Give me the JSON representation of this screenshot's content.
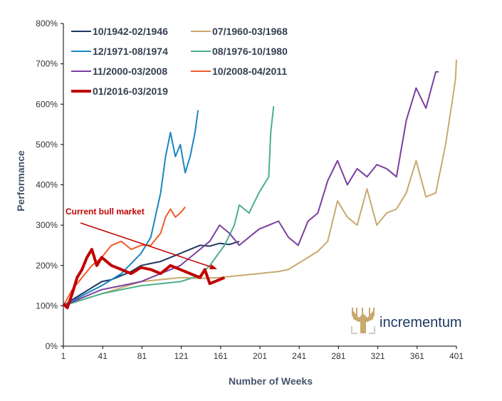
{
  "chart_data": {
    "type": "line",
    "title": "",
    "xlabel": "Number of Weeks",
    "ylabel": "Performance",
    "xlim": [
      1,
      401
    ],
    "ylim": [
      0,
      800
    ],
    "x_ticks": [
      1,
      41,
      81,
      121,
      161,
      201,
      241,
      281,
      321,
      361,
      401
    ],
    "y_ticks": [
      0,
      100,
      200,
      300,
      400,
      500,
      600,
      700,
      800
    ],
    "y_tick_format": "%",
    "grid": false,
    "legend_placement": "top-left",
    "annotation": {
      "text": "Current bull market",
      "color": "#c00000"
    },
    "logo_text": "incrementum",
    "series": [
      {
        "name": "10/1942-02/1946",
        "color": "#1f3864",
        "width": 2,
        "points": [
          [
            1,
            100
          ],
          [
            10,
            115
          ],
          [
            20,
            130
          ],
          [
            30,
            145
          ],
          [
            40,
            160
          ],
          [
            50,
            165
          ],
          [
            60,
            175
          ],
          [
            70,
            185
          ],
          [
            80,
            200
          ],
          [
            90,
            205
          ],
          [
            100,
            210
          ],
          [
            110,
            220
          ],
          [
            120,
            230
          ],
          [
            130,
            240
          ],
          [
            140,
            250
          ],
          [
            150,
            248
          ],
          [
            160,
            255
          ],
          [
            170,
            252
          ],
          [
            180,
            260
          ]
        ]
      },
      {
        "name": "07/1960-03/1968",
        "color": "#c8a96e",
        "width": 2,
        "points": [
          [
            1,
            100
          ],
          [
            20,
            115
          ],
          [
            40,
            130
          ],
          [
            60,
            145
          ],
          [
            80,
            160
          ],
          [
            100,
            165
          ],
          [
            120,
            170
          ],
          [
            140,
            168
          ],
          [
            160,
            170
          ],
          [
            180,
            175
          ],
          [
            200,
            180
          ],
          [
            220,
            185
          ],
          [
            230,
            190
          ],
          [
            240,
            205
          ],
          [
            250,
            220
          ],
          [
            260,
            235
          ],
          [
            270,
            260
          ],
          [
            280,
            360
          ],
          [
            290,
            320
          ],
          [
            300,
            300
          ],
          [
            310,
            390
          ],
          [
            320,
            300
          ],
          [
            330,
            330
          ],
          [
            340,
            340
          ],
          [
            350,
            380
          ],
          [
            360,
            460
          ],
          [
            370,
            370
          ],
          [
            380,
            380
          ],
          [
            390,
            500
          ],
          [
            400,
            660
          ],
          [
            401,
            710
          ]
        ]
      },
      {
        "name": "12/1971-08/1974",
        "color": "#1a86c0",
        "width": 2,
        "points": [
          [
            1,
            100
          ],
          [
            20,
            125
          ],
          [
            40,
            150
          ],
          [
            60,
            180
          ],
          [
            80,
            230
          ],
          [
            90,
            270
          ],
          [
            100,
            380
          ],
          [
            105,
            470
          ],
          [
            110,
            530
          ],
          [
            115,
            470
          ],
          [
            120,
            500
          ],
          [
            125,
            430
          ],
          [
            130,
            470
          ],
          [
            135,
            530
          ],
          [
            138,
            585
          ]
        ]
      },
      {
        "name": "08/1976-10/1980",
        "color": "#4caf8a",
        "width": 2,
        "points": [
          [
            1,
            100
          ],
          [
            20,
            115
          ],
          [
            40,
            130
          ],
          [
            60,
            140
          ],
          [
            80,
            150
          ],
          [
            100,
            155
          ],
          [
            120,
            160
          ],
          [
            140,
            175
          ],
          [
            150,
            200
          ],
          [
            165,
            250
          ],
          [
            175,
            300
          ],
          [
            180,
            350
          ],
          [
            190,
            330
          ],
          [
            200,
            380
          ],
          [
            210,
            420
          ],
          [
            212,
            530
          ],
          [
            215,
            595
          ]
        ]
      },
      {
        "name": "11/2000-03/2008",
        "color": "#7b3fa0",
        "width": 2,
        "points": [
          [
            1,
            100
          ],
          [
            20,
            120
          ],
          [
            40,
            140
          ],
          [
            60,
            150
          ],
          [
            80,
            160
          ],
          [
            100,
            180
          ],
          [
            120,
            200
          ],
          [
            140,
            240
          ],
          [
            150,
            260
          ],
          [
            160,
            300
          ],
          [
            170,
            280
          ],
          [
            180,
            250
          ],
          [
            200,
            290
          ],
          [
            220,
            310
          ],
          [
            230,
            270
          ],
          [
            240,
            250
          ],
          [
            250,
            310
          ],
          [
            260,
            330
          ],
          [
            270,
            410
          ],
          [
            280,
            460
          ],
          [
            290,
            400
          ],
          [
            300,
            440
          ],
          [
            310,
            420
          ],
          [
            320,
            450
          ],
          [
            330,
            440
          ],
          [
            340,
            420
          ],
          [
            350,
            560
          ],
          [
            360,
            640
          ],
          [
            370,
            590
          ],
          [
            380,
            680
          ],
          [
            383,
            680
          ]
        ]
      },
      {
        "name": "10/2008-04/2011",
        "color": "#f05a28",
        "width": 2,
        "points": [
          [
            1,
            100
          ],
          [
            10,
            140
          ],
          [
            20,
            170
          ],
          [
            30,
            200
          ],
          [
            40,
            220
          ],
          [
            50,
            250
          ],
          [
            60,
            260
          ],
          [
            70,
            240
          ],
          [
            80,
            250
          ],
          [
            90,
            250
          ],
          [
            100,
            280
          ],
          [
            105,
            320
          ],
          [
            110,
            340
          ],
          [
            115,
            320
          ],
          [
            120,
            330
          ],
          [
            125,
            345
          ]
        ]
      },
      {
        "name": "01/2016-03/2019",
        "color": "#c00000",
        "width": 4,
        "points": [
          [
            1,
            105
          ],
          [
            5,
            95
          ],
          [
            10,
            130
          ],
          [
            15,
            170
          ],
          [
            20,
            190
          ],
          [
            25,
            220
          ],
          [
            30,
            240
          ],
          [
            35,
            200
          ],
          [
            40,
            220
          ],
          [
            50,
            200
          ],
          [
            60,
            190
          ],
          [
            70,
            180
          ],
          [
            80,
            195
          ],
          [
            90,
            190
          ],
          [
            100,
            180
          ],
          [
            110,
            200
          ],
          [
            120,
            190
          ],
          [
            130,
            180
          ],
          [
            140,
            170
          ],
          [
            145,
            190
          ],
          [
            150,
            155
          ],
          [
            160,
            165
          ],
          [
            165,
            170
          ]
        ]
      }
    ]
  }
}
